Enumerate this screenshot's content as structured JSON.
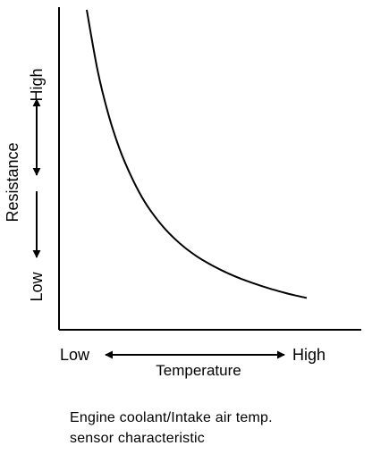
{
  "chart_data": {
    "type": "line",
    "title": "",
    "xlabel": "Temperature",
    "ylabel": "Resistance",
    "x_low_label": "Low",
    "x_high_label": "High",
    "y_low_label": "Low",
    "y_high_label": "High",
    "xlim": [
      0,
      1
    ],
    "ylim": [
      0,
      1
    ],
    "grid": false,
    "legend": "none",
    "series": [
      {
        "x": [
          0.0,
          0.05,
          0.1,
          0.15,
          0.2,
          0.25,
          0.3,
          0.35,
          0.4,
          0.45,
          0.5,
          0.55,
          0.6,
          0.65,
          0.7,
          0.75,
          0.8,
          0.85,
          0.9,
          0.95,
          1.0
        ],
        "values": [
          1.0,
          0.8,
          0.655,
          0.545,
          0.46,
          0.39,
          0.335,
          0.29,
          0.253,
          0.222,
          0.196,
          0.174,
          0.155,
          0.138,
          0.123,
          0.11,
          0.098,
          0.087,
          0.077,
          0.068,
          0.06
        ]
      }
    ]
  },
  "caption": {
    "line1": "Engine coolant/Intake air temp.",
    "line2": "sensor characteristic"
  }
}
